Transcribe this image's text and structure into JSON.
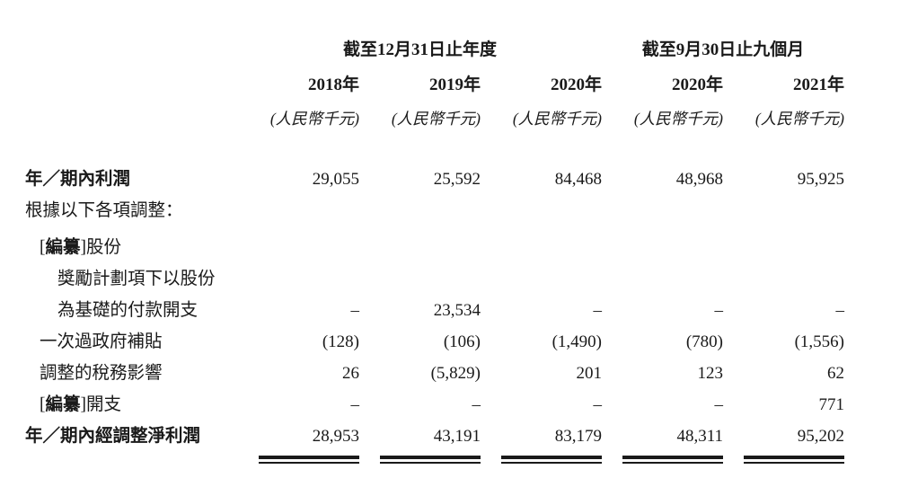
{
  "page": {
    "background": "#ffffff",
    "text_color": "#1a1a1a"
  },
  "table": {
    "column_groups": [
      {
        "label": "截至12月31日止年度"
      },
      {
        "label": "截至9月30日止九個月"
      }
    ],
    "columns": [
      {
        "year": "2018年",
        "unit": "(人民幣千元)"
      },
      {
        "year": "2019年",
        "unit": "(人民幣千元)"
      },
      {
        "year": "2020年",
        "unit": "(人民幣千元)"
      },
      {
        "year": "2020年",
        "unit": "(人民幣千元)"
      },
      {
        "year": "2021年",
        "unit": "(人民幣千元)"
      }
    ],
    "rows": [
      {
        "label": "年／期內利潤",
        "values": [
          "29,055",
          "25,592",
          "84,468",
          "48,968",
          "95,925"
        ]
      },
      {
        "label": "根據以下各項調整：",
        "values": [
          "",
          "",
          "",
          "",
          ""
        ]
      },
      {
        "prefix_open": "[",
        "prefix": "編纂",
        "prefix_close": "]",
        "label": "股份",
        "values": [
          "",
          "",
          "",
          "",
          ""
        ]
      },
      {
        "label": "獎勵計劃項下以股份",
        "values": [
          "",
          "",
          "",
          "",
          ""
        ]
      },
      {
        "label": "為基礎的付款開支",
        "values": [
          "–",
          "23,534",
          "–",
          "–",
          "–"
        ]
      },
      {
        "label": "一次過政府補貼",
        "values": [
          "(128)",
          "(106)",
          "(1,490)",
          "(780)",
          "(1,556)"
        ]
      },
      {
        "label": "調整的稅務影響",
        "values": [
          "26",
          "(5,829)",
          "201",
          "123",
          "62"
        ]
      },
      {
        "prefix_open": "[",
        "prefix": "編纂",
        "prefix_close": "]",
        "label": "開支",
        "values": [
          "–",
          "–",
          "–",
          "–",
          "771"
        ]
      },
      {
        "label": "年／期內經調整淨利潤",
        "values": [
          "28,953",
          "43,191",
          "83,179",
          "48,311",
          "95,202"
        ]
      }
    ]
  }
}
